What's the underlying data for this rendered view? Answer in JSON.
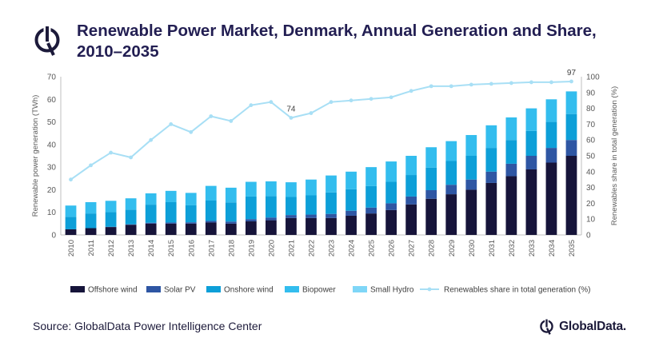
{
  "header": {
    "title": "Renewable Power Market, Denmark, Annual Generation and Share, 2010–2035"
  },
  "footer": {
    "source": "Source: GlobalData Power Intelligence Center",
    "brand": "GlobalData."
  },
  "chart_data": {
    "type": "bar",
    "stacked": true,
    "title": "Renewable Power Market, Denmark, Annual Generation and Share, 2010–2035",
    "categories": [
      "2010",
      "2011",
      "2012",
      "2013",
      "2014",
      "2015",
      "2016",
      "2017",
      "2018",
      "2019",
      "2020",
      "2021",
      "2022",
      "2023",
      "2024",
      "2025",
      "2026",
      "2027",
      "2028",
      "2029",
      "2030",
      "2031",
      "2032",
      "2033",
      "2034",
      "2035"
    ],
    "ylabel": "Renewable power generation (TWh)",
    "ylim": [
      0,
      70
    ],
    "yticks": [
      0,
      10,
      20,
      30,
      40,
      50,
      60,
      70
    ],
    "y2label": "Renewables share in total generation (%)",
    "y2lim": [
      0,
      100
    ],
    "y2ticks": [
      0,
      10,
      20,
      30,
      40,
      50,
      60,
      70,
      80,
      90,
      100
    ],
    "legend_position": "bottom",
    "grid": false,
    "series": [
      {
        "name": "Offshore wind",
        "color": "#16143a",
        "axis": "left",
        "values": [
          2.5,
          3.0,
          3.5,
          4.5,
          5.0,
          5.0,
          5.0,
          5.5,
          5.0,
          6.0,
          6.5,
          7.5,
          7.5,
          7.5,
          8.5,
          9.5,
          11.0,
          13.5,
          16.0,
          18.0,
          20.0,
          23.0,
          26.0,
          29.0,
          32.0,
          35.0
        ]
      },
      {
        "name": "Solar PV",
        "color": "#2e56a3",
        "axis": "left",
        "values": [
          0.0,
          0.0,
          0.1,
          0.2,
          0.4,
          0.5,
          0.6,
          0.7,
          0.9,
          1.0,
          1.2,
          1.3,
          1.5,
          1.8,
          2.2,
          2.6,
          3.0,
          3.5,
          3.8,
          4.2,
          4.5,
          5.0,
          5.5,
          6.0,
          6.5,
          7.0
        ]
      },
      {
        "name": "Onshore wind",
        "color": "#0d9fd8",
        "axis": "left",
        "values": [
          5.5,
          6.5,
          6.5,
          6.5,
          8.0,
          9.0,
          7.5,
          9.0,
          8.5,
          10.0,
          9.5,
          8.0,
          8.5,
          9.5,
          9.5,
          9.5,
          9.5,
          9.5,
          10.0,
          10.5,
          10.5,
          10.5,
          10.5,
          11.0,
          11.5,
          11.5
        ]
      },
      {
        "name": "Biopower",
        "color": "#33bdee",
        "axis": "left",
        "values": [
          5.0,
          5.0,
          5.0,
          5.0,
          5.0,
          5.0,
          5.5,
          6.5,
          6.5,
          6.5,
          6.5,
          6.5,
          7.0,
          7.5,
          7.8,
          8.4,
          9.0,
          8.5,
          9.0,
          8.8,
          9.2,
          10.0,
          10.0,
          10.0,
          10.0,
          10.0
        ]
      },
      {
        "name": "Small Hydro",
        "color": "#7fd6f7",
        "axis": "left",
        "values": [
          0.0,
          0.0,
          0.0,
          0.0,
          0.0,
          0.0,
          0.0,
          0.0,
          0.0,
          0.0,
          0.0,
          0.0,
          0.0,
          0.0,
          0.0,
          0.0,
          0.0,
          0.0,
          0.0,
          0.0,
          0.0,
          0.0,
          0.0,
          0.0,
          0.0,
          0.0
        ]
      },
      {
        "name": "Renewables share in total generation (%)",
        "color": "#a8dff5",
        "axis": "right",
        "type": "line",
        "values": [
          35,
          44,
          52,
          49,
          60,
          70,
          65,
          75,
          72,
          82,
          84,
          74,
          77,
          84,
          85,
          86,
          87,
          91,
          94,
          94,
          95,
          95.5,
          96,
          96.5,
          96.5,
          97
        ]
      }
    ],
    "annotations": [
      {
        "category": "2021",
        "series": "Renewables share in total generation (%)",
        "label": "74"
      },
      {
        "category": "2035",
        "series": "Renewables share in total generation (%)",
        "label": "97"
      }
    ]
  }
}
